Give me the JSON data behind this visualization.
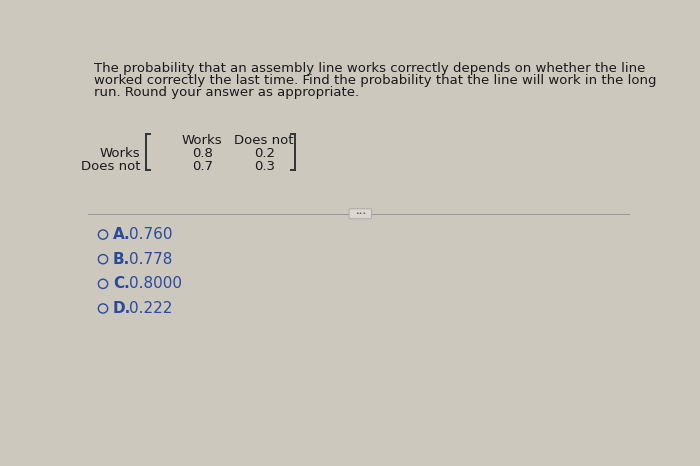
{
  "background_color": "#cdc8be",
  "question_text_lines": [
    "The probability that an assembly line works correctly depends on whether the line",
    "worked correctly the last time. Find the probability that the line will work in the long",
    "run. Round your answer as appropriate."
  ],
  "matrix_col_headers": [
    "Works",
    "Does not"
  ],
  "matrix_row_headers": [
    "Works",
    "Does not"
  ],
  "matrix_values": [
    [
      "0.8",
      "0.2"
    ],
    [
      "0.7",
      "0.3"
    ]
  ],
  "choices": [
    {
      "label": "A.",
      "value": "0.760"
    },
    {
      "label": "B.",
      "value": "0.778"
    },
    {
      "label": "C.",
      "value": "0.8000"
    },
    {
      "label": "D.",
      "value": "0.222"
    }
  ],
  "text_color": "#1a1a1a",
  "choice_color": "#2b4a9e",
  "font_size_question": 9.5,
  "font_size_matrix": 9.5,
  "font_size_choices": 11,
  "divider_color": "#999999",
  "bracket_color": "#333333"
}
